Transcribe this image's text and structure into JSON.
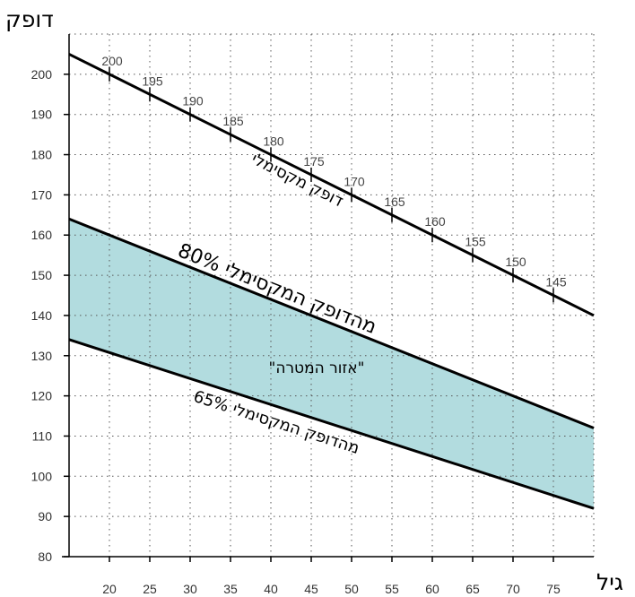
{
  "chart_data": {
    "type": "line",
    "xlabel": "גיל",
    "ylabel": "דופק",
    "xlim": [
      15,
      80
    ],
    "ylim": [
      80,
      210
    ],
    "x_ticks": [
      20,
      25,
      30,
      35,
      40,
      45,
      50,
      55,
      60,
      65,
      70,
      75
    ],
    "y_ticks": [
      80,
      90,
      100,
      110,
      120,
      130,
      140,
      150,
      160,
      170,
      180,
      190,
      200
    ],
    "grid": true,
    "series": [
      {
        "name": "דופק מקסימלי",
        "x": [
          15,
          80
        ],
        "values": [
          205,
          140
        ],
        "color": "#000000"
      },
      {
        "name": "80% מהדופק המקסימלי",
        "x": [
          15,
          80
        ],
        "values": [
          164,
          112
        ],
        "color": "#000000"
      },
      {
        "name": "65% מהדופק המקסימלי",
        "x": [
          15,
          80
        ],
        "values": [
          134,
          92
        ],
        "color": "#000000"
      }
    ],
    "target_zone": {
      "label": "\"אזור המטרה\"",
      "upper_series": 1,
      "lower_series": 2,
      "fill": "#b2dcdf"
    },
    "max_hr_annotations": [
      {
        "x": 20,
        "label": "200"
      },
      {
        "x": 25,
        "label": "195"
      },
      {
        "x": 30,
        "label": "190"
      },
      {
        "x": 35,
        "label": "185"
      },
      {
        "x": 40,
        "label": "180"
      },
      {
        "x": 45,
        "label": "175"
      },
      {
        "x": 50,
        "label": "170"
      },
      {
        "x": 55,
        "label": "165"
      },
      {
        "x": 60,
        "label": "160"
      },
      {
        "x": 65,
        "label": "155"
      },
      {
        "x": 70,
        "label": "150"
      },
      {
        "x": 75,
        "label": "145"
      }
    ]
  }
}
